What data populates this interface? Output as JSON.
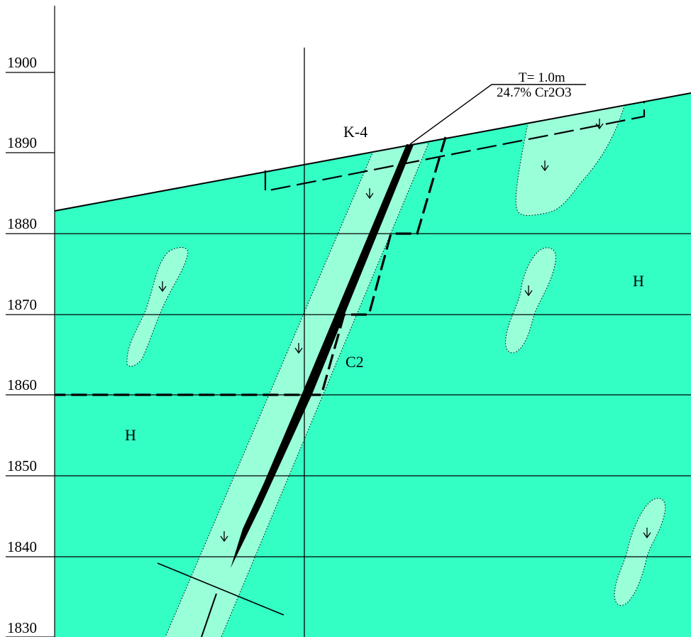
{
  "elevations": [
    "1900",
    "1890",
    "1880",
    "1870",
    "1860",
    "1850",
    "1840",
    "1830"
  ],
  "labels": {
    "drillhole": "K-4",
    "unit_main_right": "H",
    "unit_main_left": "H",
    "category": "C2"
  },
  "intercept": {
    "thickness": "T= 1.0m",
    "grade": "24.7% Cr2O3"
  },
  "colors": {
    "host_rock": "#33ffc4",
    "alteration": "#99ffd9",
    "ore": "#000000"
  }
}
